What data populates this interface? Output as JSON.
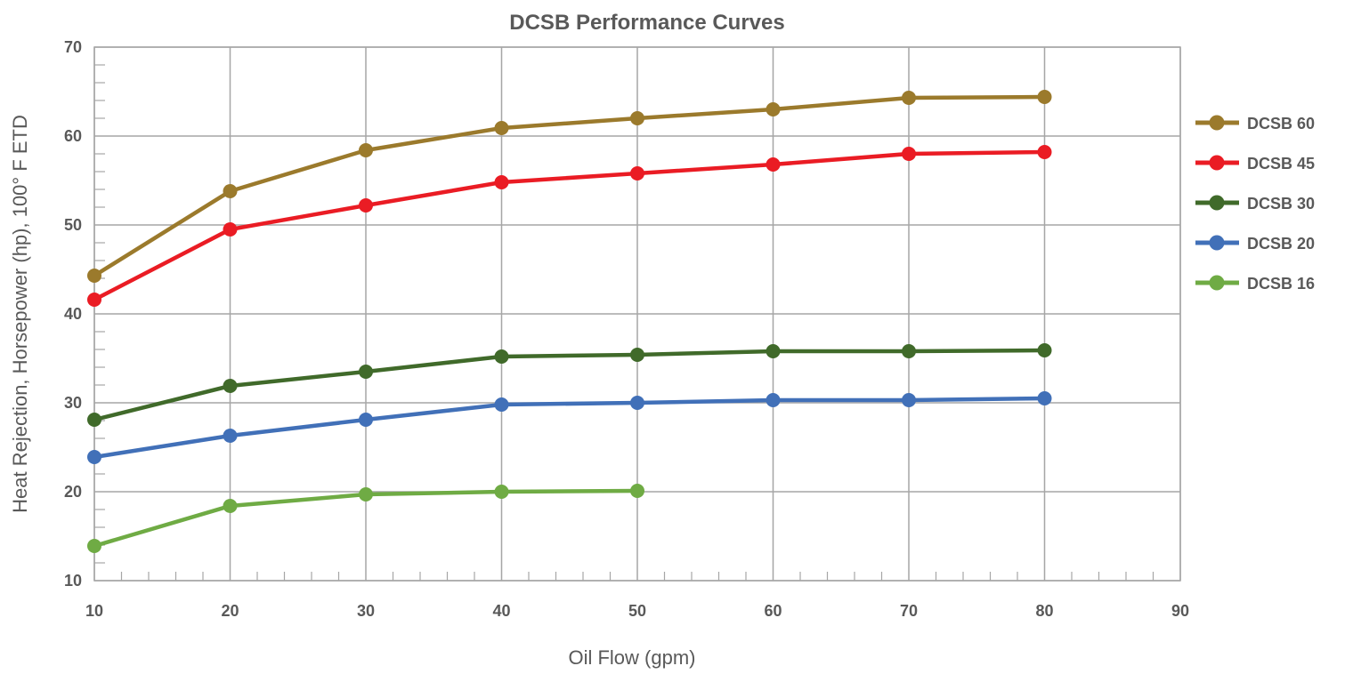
{
  "chart_data": {
    "type": "line",
    "title": "DCSB Performance Curves",
    "xlabel": "Oil Flow (gpm)",
    "ylabel": "Heat Rejection, Horsepower (hp), 100° F ETD",
    "xlim": [
      10,
      90
    ],
    "ylim": [
      10,
      70
    ],
    "x_ticks": [
      "10",
      "20",
      "30",
      "40",
      "50",
      "60",
      "70",
      "80",
      "90"
    ],
    "y_ticks": [
      "10",
      "20",
      "30",
      "40",
      "50",
      "60",
      "70"
    ],
    "x_tick_values": [
      10,
      20,
      30,
      40,
      50,
      60,
      70,
      80,
      90
    ],
    "y_tick_values": [
      10,
      20,
      30,
      40,
      50,
      60,
      70
    ],
    "grid": true,
    "legend_position": "right",
    "series": [
      {
        "name": "DCSB 60",
        "color": "#9b7a2c",
        "x": [
          10,
          20,
          30,
          40,
          50,
          60,
          70,
          80
        ],
        "y": [
          44.3,
          53.8,
          58.4,
          60.9,
          62.0,
          63.0,
          64.3,
          64.4
        ]
      },
      {
        "name": "DCSB 45",
        "color": "#ea1c24",
        "x": [
          10,
          20,
          30,
          40,
          50,
          60,
          70,
          80
        ],
        "y": [
          41.6,
          49.5,
          52.2,
          54.8,
          55.8,
          56.8,
          58.0,
          58.2
        ]
      },
      {
        "name": "DCSB 30",
        "color": "#406a2a",
        "x": [
          10,
          20,
          30,
          40,
          50,
          60,
          70,
          80
        ],
        "y": [
          28.1,
          31.9,
          33.5,
          35.2,
          35.4,
          35.8,
          35.8,
          35.9
        ]
      },
      {
        "name": "DCSB 20",
        "color": "#4170b8",
        "x": [
          10,
          20,
          30,
          40,
          50,
          60,
          70,
          80
        ],
        "y": [
          23.9,
          26.3,
          28.1,
          29.8,
          30.0,
          30.3,
          30.3,
          30.5
        ]
      },
      {
        "name": "DCSB 16",
        "color": "#6fab44",
        "x": [
          10,
          20,
          30,
          40,
          50
        ],
        "y": [
          13.9,
          18.4,
          19.7,
          20.0,
          20.1
        ]
      }
    ]
  }
}
